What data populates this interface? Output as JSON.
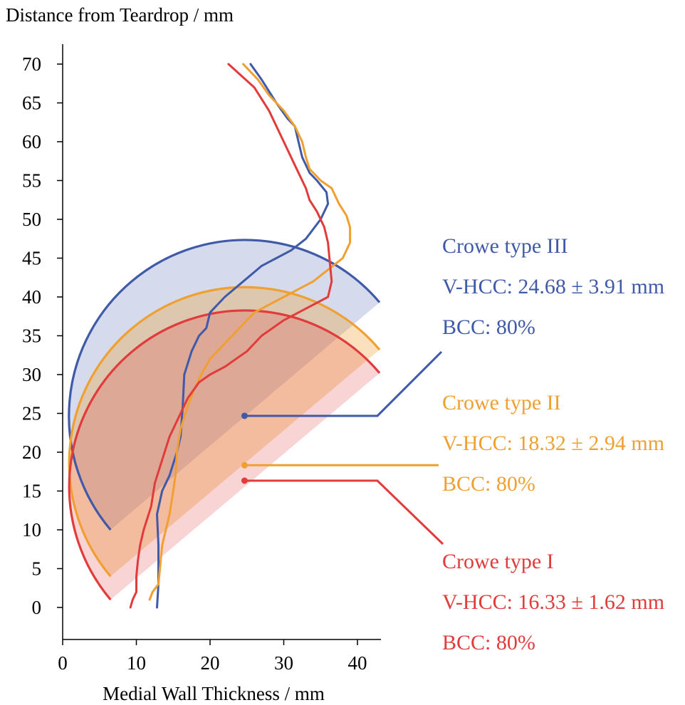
{
  "chart_data": {
    "type": "line",
    "ylabel": "Distance from Teardrop / mm",
    "xlabel": "Medial Wall Thickness / mm",
    "xlim": [
      0,
      43
    ],
    "ylim": [
      0,
      70
    ],
    "x_ticks": [
      "0",
      "10",
      "20",
      "30",
      "40"
    ],
    "y_ticks": [
      "0",
      "5",
      "10",
      "15",
      "20",
      "25",
      "30",
      "35",
      "40",
      "45",
      "50",
      "55",
      "60",
      "65",
      "70"
    ],
    "grid": false,
    "series": [
      {
        "name": "Crowe type III",
        "color": "#3f5aa8",
        "points": [
          [
            12.8,
            0
          ],
          [
            13,
            3
          ],
          [
            13,
            8
          ],
          [
            12.8,
            12
          ],
          [
            13.5,
            15
          ],
          [
            14.5,
            17
          ],
          [
            15.5,
            20
          ],
          [
            16,
            22
          ],
          [
            16.3,
            26
          ],
          [
            16.5,
            30
          ],
          [
            17.5,
            33
          ],
          [
            18.5,
            35
          ],
          [
            19.5,
            36
          ],
          [
            20,
            38
          ],
          [
            22,
            40
          ],
          [
            24.5,
            42
          ],
          [
            27,
            44
          ],
          [
            29,
            45
          ],
          [
            31,
            46
          ],
          [
            33,
            47.5
          ],
          [
            35,
            50
          ],
          [
            36,
            52
          ],
          [
            35.8,
            53.5
          ],
          [
            34.5,
            55
          ],
          [
            33.5,
            56
          ],
          [
            33,
            57
          ],
          [
            32.5,
            58
          ],
          [
            32,
            60
          ],
          [
            31.5,
            62
          ],
          [
            30.5,
            63
          ],
          [
            29,
            65
          ],
          [
            27,
            68
          ],
          [
            25.5,
            70
          ]
        ]
      },
      {
        "name": "Crowe type II",
        "color": "#f0a030",
        "points": [
          [
            11.8,
            1
          ],
          [
            12.2,
            2
          ],
          [
            13,
            3
          ],
          [
            13.5,
            8
          ],
          [
            14.5,
            12
          ],
          [
            15,
            15
          ],
          [
            15.3,
            17
          ],
          [
            15.5,
            20
          ],
          [
            16,
            23
          ],
          [
            17,
            26
          ],
          [
            17.8,
            28
          ],
          [
            18.8,
            30
          ],
          [
            20,
            32
          ],
          [
            22,
            34
          ],
          [
            24,
            36
          ],
          [
            26,
            38
          ],
          [
            28,
            39
          ],
          [
            30,
            40
          ],
          [
            32,
            41
          ],
          [
            34,
            42
          ],
          [
            36,
            43.5
          ],
          [
            38,
            45
          ],
          [
            38.5,
            46
          ],
          [
            39,
            47
          ],
          [
            39,
            49
          ],
          [
            38.5,
            50.5
          ],
          [
            37.5,
            52
          ],
          [
            36.5,
            54
          ],
          [
            35,
            55
          ],
          [
            33.5,
            56.5
          ],
          [
            33,
            58
          ],
          [
            32.5,
            60
          ],
          [
            31.5,
            62
          ],
          [
            30,
            64
          ],
          [
            28,
            66
          ],
          [
            26.5,
            68
          ],
          [
            24.5,
            70
          ]
        ]
      },
      {
        "name": "Crowe type I",
        "color": "#e13b3b",
        "points": [
          [
            9.2,
            0
          ],
          [
            9.5,
            1
          ],
          [
            10,
            2
          ],
          [
            10,
            4
          ],
          [
            10.2,
            6
          ],
          [
            10.5,
            8
          ],
          [
            11,
            10
          ],
          [
            12,
            13
          ],
          [
            12.5,
            16
          ],
          [
            13.5,
            19
          ],
          [
            14.5,
            22
          ],
          [
            16,
            25
          ],
          [
            17,
            27
          ],
          [
            18.5,
            29
          ],
          [
            20,
            30
          ],
          [
            22,
            31
          ],
          [
            23.5,
            32
          ],
          [
            25,
            33
          ],
          [
            26,
            34
          ],
          [
            27,
            35
          ],
          [
            28.5,
            36
          ],
          [
            30,
            37
          ],
          [
            32,
            38
          ],
          [
            34,
            39
          ],
          [
            36,
            40
          ],
          [
            36.5,
            42
          ],
          [
            36.3,
            44
          ],
          [
            36,
            47
          ],
          [
            35.5,
            49
          ],
          [
            34.5,
            51
          ],
          [
            33.5,
            52.5
          ],
          [
            33,
            54
          ],
          [
            31.5,
            57
          ],
          [
            30,
            60
          ],
          [
            28,
            64
          ],
          [
            26,
            67
          ],
          [
            22.5,
            70
          ]
        ]
      }
    ],
    "circles": [
      {
        "series": "Crowe type III",
        "color": "#3f5aa8",
        "center": [
          24.68,
          24.68
        ],
        "radius": 22.6,
        "band_start": [
          6.5,
          10
        ],
        "band_end": [
          43,
          39.3
        ]
      },
      {
        "series": "Crowe type II",
        "color": "#f0a030",
        "center": [
          24.68,
          18.32
        ],
        "radius": 23.0,
        "band_start": [
          6.5,
          4
        ],
        "band_end": [
          43,
          33.2
        ]
      },
      {
        "series": "Crowe type I",
        "color": "#e13b3b",
        "center": [
          24.68,
          16.33
        ],
        "radius": 22.2,
        "band_start": [
          6.5,
          1
        ],
        "band_end": [
          43,
          30.2
        ]
      }
    ],
    "legend_placement": "right",
    "annotations": [
      {
        "series": "Crowe type III",
        "color": "#3f5aa8",
        "name": "Crowe type III",
        "vhcc": "V-HCC: 24.68 ± 3.91 mm",
        "bcc": "BCC: 80%",
        "point": [
          24.68,
          24.68
        ]
      },
      {
        "series": "Crowe type II",
        "color": "#f0a030",
        "name": "Crowe type II",
        "vhcc": "V-HCC: 18.32 ± 2.94 mm",
        "bcc": "BCC: 80%",
        "point": [
          24.68,
          18.32
        ]
      },
      {
        "series": "Crowe type I",
        "color": "#e13b3b",
        "name": "Crowe type I",
        "vhcc": "V-HCC: 16.33 ± 1.62 mm",
        "bcc": "BCC: 80%",
        "point": [
          24.68,
          16.33
        ]
      }
    ]
  }
}
